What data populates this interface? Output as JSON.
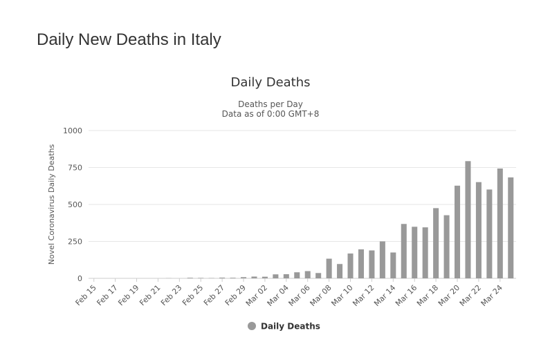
{
  "page": {
    "title": "Daily New Deaths in Italy"
  },
  "chart_data": {
    "type": "bar",
    "title": "Daily Deaths",
    "subtitle_lines": [
      "Deaths per Day",
      "Data as of 0:00 GMT+8"
    ],
    "ylabel": "Novel Coronavirus Daily Deaths",
    "xlabel": "",
    "ylim": [
      0,
      1000
    ],
    "yticks": [
      0,
      250,
      500,
      750,
      1000
    ],
    "grid": true,
    "legend_position": "bottom",
    "bar_color": "#999999",
    "categories": [
      "Feb 15",
      "Feb 16",
      "Feb 17",
      "Feb 18",
      "Feb 19",
      "Feb 20",
      "Feb 21",
      "Feb 22",
      "Feb 23",
      "Feb 24",
      "Feb 25",
      "Feb 26",
      "Feb 27",
      "Feb 28",
      "Feb 29",
      "Mar 01",
      "Mar 02",
      "Mar 03",
      "Mar 04",
      "Mar 05",
      "Mar 06",
      "Mar 07",
      "Mar 08",
      "Mar 09",
      "Mar 10",
      "Mar 11",
      "Mar 12",
      "Mar 13",
      "Mar 14",
      "Mar 15",
      "Mar 16",
      "Mar 17",
      "Mar 18",
      "Mar 19",
      "Mar 20",
      "Mar 21",
      "Mar 22",
      "Mar 23",
      "Mar 24",
      "Mar 25"
    ],
    "tick_labels": [
      "Feb 15",
      "Feb 17",
      "Feb 19",
      "Feb 21",
      "Feb 23",
      "Feb 25",
      "Feb 27",
      "Feb 29",
      "Mar 02",
      "Mar 04",
      "Mar 06",
      "Mar 08",
      "Mar 10",
      "Mar 12",
      "Mar 14",
      "Mar 16",
      "Mar 18",
      "Mar 20",
      "Mar 22",
      "Mar 24"
    ],
    "series": [
      {
        "name": "Daily Deaths",
        "values": [
          0,
          0,
          0,
          0,
          0,
          0,
          0,
          1,
          0,
          4,
          3,
          2,
          5,
          4,
          8,
          12,
          11,
          27,
          28,
          41,
          49,
          36,
          133,
          97,
          168,
          196,
          189,
          250,
          175,
          368,
          349,
          345,
          475,
          427,
          627,
          793,
          651,
          601,
          743,
          683
        ]
      }
    ]
  }
}
